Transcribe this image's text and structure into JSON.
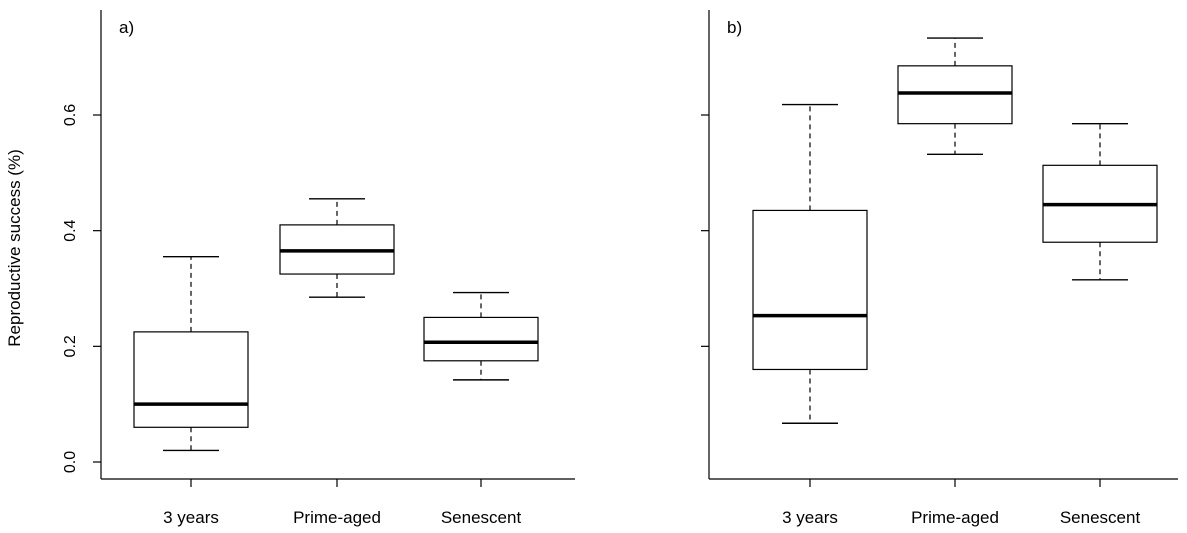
{
  "figure": {
    "ylabel": "Reproductive success (%)"
  },
  "chart_data": [
    {
      "type": "box",
      "panel_label": "a)",
      "ylabel": "Reproductive success (%)",
      "ylim": [
        0.0,
        0.75
      ],
      "yticks": [
        "0.0",
        "0.2",
        "0.4",
        "0.6"
      ],
      "yticks_values": [
        0.0,
        0.2,
        0.4,
        0.6
      ],
      "show_tick_labels": true,
      "categories": [
        "3 years",
        "Prime-aged",
        "Senescent"
      ],
      "boxes": [
        {
          "min": 0.02,
          "q1": 0.06,
          "median": 0.1,
          "q3": 0.225,
          "max": 0.355
        },
        {
          "min": 0.285,
          "q1": 0.325,
          "median": 0.365,
          "q3": 0.41,
          "max": 0.455
        },
        {
          "min": 0.142,
          "q1": 0.175,
          "median": 0.207,
          "q3": 0.25,
          "max": 0.293
        }
      ]
    },
    {
      "type": "box",
      "panel_label": "b)",
      "ylim": [
        0.0,
        0.75
      ],
      "yticks_values": [
        0.2,
        0.4,
        0.6
      ],
      "show_tick_labels": false,
      "categories": [
        "3 years",
        "Prime-aged",
        "Senescent"
      ],
      "boxes": [
        {
          "min": 0.067,
          "q1": 0.16,
          "median": 0.253,
          "q3": 0.435,
          "max": 0.618
        },
        {
          "min": 0.532,
          "q1": 0.585,
          "median": 0.638,
          "q3": 0.685,
          "max": 0.733
        },
        {
          "min": 0.315,
          "q1": 0.38,
          "median": 0.445,
          "q3": 0.513,
          "max": 0.585
        }
      ]
    }
  ]
}
